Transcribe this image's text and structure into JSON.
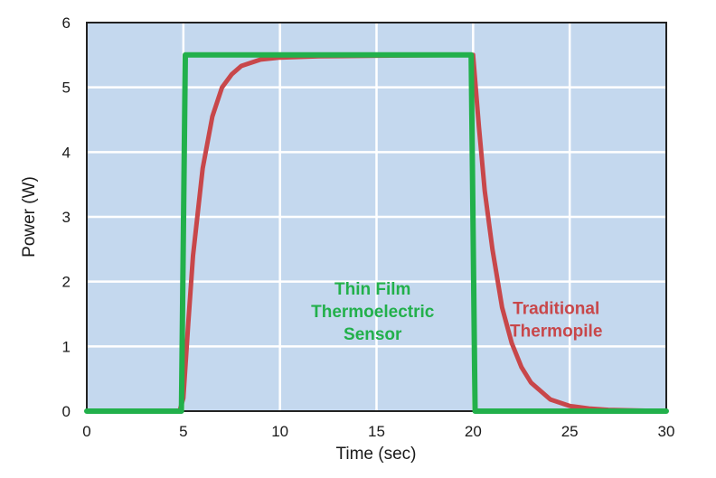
{
  "chart_data": {
    "type": "line",
    "xlabel": "Time (sec)",
    "ylabel": "Power (W)",
    "xlim": [
      0,
      30
    ],
    "ylim": [
      0,
      6
    ],
    "x_ticks": [
      0,
      5,
      10,
      15,
      20,
      25,
      30
    ],
    "y_ticks": [
      0,
      1,
      2,
      3,
      4,
      5,
      6
    ],
    "grid": true,
    "colors": {
      "plot_bg": "#c4d8ee",
      "grid": "#ffffff",
      "frame": "#222222"
    },
    "series": [
      {
        "name": "Thin Film Thermoelectric Sensor",
        "color": "#22b04b",
        "x": [
          0,
          4.9,
          5.1,
          19.9,
          20.1,
          30
        ],
        "y": [
          0,
          0,
          5.5,
          5.5,
          0,
          0
        ]
      },
      {
        "name": "Traditional Thermopile",
        "color": "#c8474a",
        "x": [
          0,
          4.8,
          5.0,
          5.25,
          5.5,
          6.0,
          6.5,
          7.0,
          7.5,
          8.0,
          9.0,
          10.0,
          12.0,
          15.0,
          19.8,
          20.0,
          20.3,
          20.6,
          21.0,
          21.5,
          22.0,
          22.5,
          23.0,
          24.0,
          25.0,
          26.0,
          27.0,
          30.0
        ],
        "y": [
          0,
          0,
          0.2,
          1.35,
          2.4,
          3.75,
          4.55,
          5.0,
          5.2,
          5.33,
          5.43,
          5.46,
          5.48,
          5.49,
          5.5,
          5.5,
          4.4,
          3.4,
          2.5,
          1.6,
          1.05,
          0.68,
          0.44,
          0.18,
          0.08,
          0.04,
          0.02,
          0.0
        ]
      }
    ],
    "annotations": [
      {
        "series": 0,
        "lines": [
          "Thin Film",
          "Thermoelectric",
          "Sensor"
        ],
        "x": 14.8,
        "y": 1.8
      },
      {
        "series": 1,
        "lines": [
          "Traditional",
          "Thermopile"
        ],
        "x": 24.3,
        "y": 1.5
      }
    ]
  }
}
